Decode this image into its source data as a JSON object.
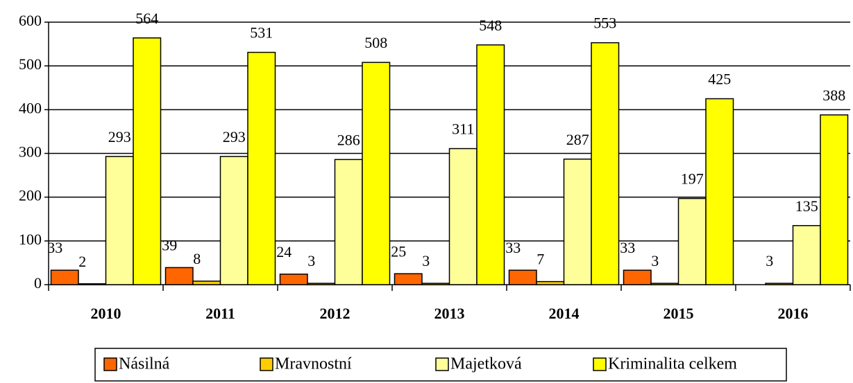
{
  "chart_data": {
    "type": "bar",
    "categories": [
      "2010",
      "2011",
      "2012",
      "2013",
      "2014",
      "2015",
      "2016"
    ],
    "series": [
      {
        "name": "Násilná",
        "color": "#ff6600",
        "values": [
          33,
          39,
          24,
          25,
          33,
          33,
          null
        ]
      },
      {
        "name": "Mravnostní",
        "color": "#ffcc00",
        "values": [
          2,
          8,
          3,
          3,
          7,
          3,
          3
        ]
      },
      {
        "name": "Majetková",
        "color": "#ffff99",
        "values": [
          293,
          293,
          286,
          311,
          287,
          197,
          135
        ]
      },
      {
        "name": "Kriminalita celkem",
        "color": "#ffff00",
        "values": [
          564,
          531,
          508,
          548,
          553,
          425,
          388
        ]
      }
    ],
    "ylim": [
      0,
      600
    ],
    "yticks": [
      0,
      100,
      200,
      300,
      400,
      500,
      600
    ],
    "grid": true,
    "legend": "bottom"
  }
}
